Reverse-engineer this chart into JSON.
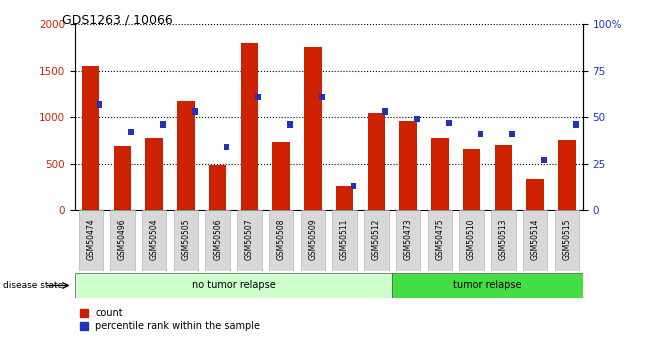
{
  "title": "GDS1263 / 10066",
  "categories": [
    "GSM50474",
    "GSM50496",
    "GSM50504",
    "GSM50505",
    "GSM50506",
    "GSM50507",
    "GSM50508",
    "GSM50509",
    "GSM50511",
    "GSM50512",
    "GSM50473",
    "GSM50475",
    "GSM50510",
    "GSM50513",
    "GSM50514",
    "GSM50515"
  ],
  "count_values": [
    1550,
    690,
    775,
    1180,
    490,
    1800,
    740,
    1760,
    260,
    1050,
    960,
    780,
    655,
    700,
    340,
    755
  ],
  "percentile_values": [
    57,
    42,
    46,
    53,
    34,
    61,
    46,
    61,
    13,
    53,
    49,
    47,
    41,
    41,
    27,
    46
  ],
  "no_tumor_count": 10,
  "tumor_count": 6,
  "ylim_left": [
    0,
    2000
  ],
  "ylim_right": [
    0,
    100
  ],
  "yticks_left": [
    0,
    500,
    1000,
    1500,
    2000
  ],
  "yticks_right": [
    0,
    25,
    50,
    75,
    100
  ],
  "bar_color_red": "#cc2200",
  "bar_color_blue": "#2233bb",
  "no_tumor_color": "#ccffcc",
  "tumor_color": "#44dd44",
  "bg_color": "#ffffff",
  "disease_state_label": "disease state",
  "no_tumor_label": "no tumor relapse",
  "tumor_label": "tumor relapse",
  "legend_count": "count",
  "legend_pct": "percentile rank within the sample",
  "right_axis_top_label": "100%"
}
